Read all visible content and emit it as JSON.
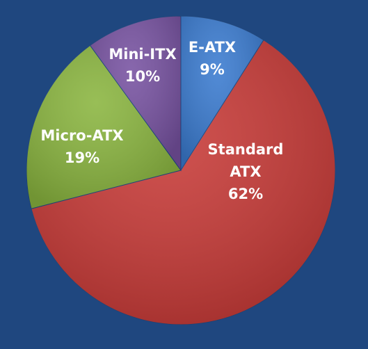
{
  "chart_data": {
    "type": "pie",
    "categories": [
      "E-ATX",
      "Standard ATX",
      "Micro-ATX",
      "Mini-ITX"
    ],
    "values": [
      9,
      62,
      19,
      10
    ],
    "value_labels": [
      "9%",
      "62%",
      "19%",
      "10%"
    ],
    "colors": [
      "#3a7bd0",
      "#c83a37",
      "#8ab53f",
      "#7752a1"
    ]
  }
}
